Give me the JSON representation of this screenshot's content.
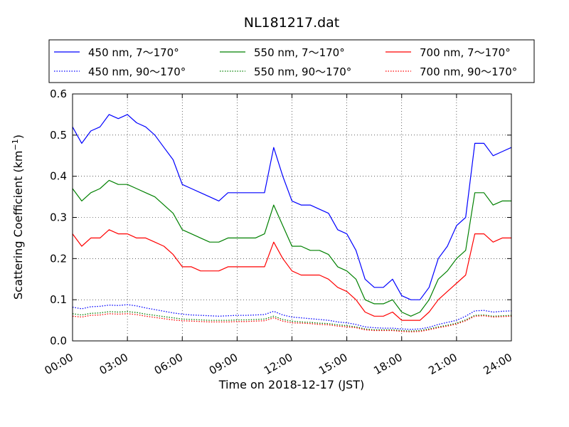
{
  "chart_data": {
    "type": "line",
    "title": "NL181217.dat",
    "xlabel": "Time on 2018-12-17 (JST)",
    "ylabel_main": "Scattering Coefficient (km",
    "ylabel_exp": "−1",
    "ylabel_close": ")",
    "xlim": [
      0,
      24
    ],
    "ylim": [
      0,
      0.6
    ],
    "x_tick_values": [
      0,
      3,
      6,
      9,
      12,
      15,
      18,
      21,
      24
    ],
    "x_tick_labels": [
      "00:00",
      "03:00",
      "06:00",
      "09:00",
      "12:00",
      "15:00",
      "18:00",
      "21:00",
      "24:00"
    ],
    "y_tick_values": [
      0,
      0.1,
      0.2,
      0.3,
      0.4,
      0.5,
      0.6
    ],
    "y_tick_labels": [
      "0.0",
      "0.1",
      "0.2",
      "0.3",
      "0.4",
      "0.5",
      "0.6"
    ],
    "grid": true,
    "legend_placement": "top",
    "x": [
      0,
      0.5,
      1,
      1.5,
      2,
      2.5,
      3,
      3.5,
      4,
      4.5,
      5,
      5.5,
      6,
      6.5,
      7,
      7.5,
      8,
      8.5,
      9,
      9.5,
      10,
      10.5,
      11,
      11.5,
      12,
      12.5,
      13,
      13.5,
      14,
      14.5,
      15,
      15.5,
      16,
      16.5,
      17,
      17.5,
      18,
      18.5,
      19,
      19.5,
      20,
      20.5,
      21,
      21.5,
      22,
      22.5,
      23,
      23.5,
      24
    ],
    "series": [
      {
        "name": "450 nm, 7～170°",
        "color": "#0000ff",
        "style": "solid",
        "values": [
          0.52,
          0.48,
          0.51,
          0.52,
          0.55,
          0.54,
          0.55,
          0.53,
          0.52,
          0.5,
          0.47,
          0.44,
          0.38,
          0.37,
          0.36,
          0.35,
          0.34,
          0.36,
          0.36,
          0.36,
          0.36,
          0.36,
          0.47,
          0.4,
          0.34,
          0.33,
          0.33,
          0.32,
          0.31,
          0.27,
          0.26,
          0.22,
          0.15,
          0.13,
          0.13,
          0.15,
          0.11,
          0.1,
          0.1,
          0.13,
          0.2,
          0.23,
          0.28,
          0.3,
          0.48,
          0.48,
          0.45,
          0.46,
          0.47
        ]
      },
      {
        "name": "450 nm, 90～170°",
        "color": "#0000ff",
        "style": "dotted",
        "values": [
          0.082,
          0.078,
          0.083,
          0.084,
          0.087,
          0.086,
          0.088,
          0.085,
          0.08,
          0.076,
          0.072,
          0.068,
          0.065,
          0.063,
          0.062,
          0.061,
          0.06,
          0.061,
          0.062,
          0.062,
          0.063,
          0.064,
          0.072,
          0.063,
          0.058,
          0.056,
          0.054,
          0.052,
          0.05,
          0.046,
          0.044,
          0.04,
          0.034,
          0.032,
          0.031,
          0.031,
          0.029,
          0.028,
          0.029,
          0.033,
          0.04,
          0.045,
          0.05,
          0.06,
          0.073,
          0.074,
          0.07,
          0.072,
          0.073
        ]
      },
      {
        "name": "550 nm, 7～170°",
        "color": "#008000",
        "style": "solid",
        "values": [
          0.37,
          0.34,
          0.36,
          0.37,
          0.39,
          0.38,
          0.38,
          0.37,
          0.36,
          0.35,
          0.33,
          0.31,
          0.27,
          0.26,
          0.25,
          0.24,
          0.24,
          0.25,
          0.25,
          0.25,
          0.25,
          0.26,
          0.33,
          0.28,
          0.23,
          0.23,
          0.22,
          0.22,
          0.21,
          0.18,
          0.17,
          0.15,
          0.1,
          0.09,
          0.09,
          0.1,
          0.07,
          0.06,
          0.07,
          0.1,
          0.15,
          0.17,
          0.2,
          0.22,
          0.36,
          0.36,
          0.33,
          0.34,
          0.34
        ]
      },
      {
        "name": "550 nm, 90～170°",
        "color": "#008000",
        "style": "dotted",
        "values": [
          0.066,
          0.063,
          0.067,
          0.068,
          0.071,
          0.07,
          0.071,
          0.069,
          0.065,
          0.062,
          0.059,
          0.056,
          0.053,
          0.052,
          0.051,
          0.05,
          0.05,
          0.05,
          0.051,
          0.051,
          0.052,
          0.053,
          0.06,
          0.052,
          0.048,
          0.046,
          0.045,
          0.043,
          0.042,
          0.039,
          0.037,
          0.034,
          0.029,
          0.027,
          0.027,
          0.027,
          0.025,
          0.024,
          0.025,
          0.029,
          0.034,
          0.038,
          0.043,
          0.051,
          0.062,
          0.063,
          0.06,
          0.061,
          0.062
        ]
      },
      {
        "name": "700 nm, 7～170°",
        "color": "#ff0000",
        "style": "solid",
        "values": [
          0.26,
          0.23,
          0.25,
          0.25,
          0.27,
          0.26,
          0.26,
          0.25,
          0.25,
          0.24,
          0.23,
          0.21,
          0.18,
          0.18,
          0.17,
          0.17,
          0.17,
          0.18,
          0.18,
          0.18,
          0.18,
          0.18,
          0.24,
          0.2,
          0.17,
          0.16,
          0.16,
          0.16,
          0.15,
          0.13,
          0.12,
          0.1,
          0.07,
          0.06,
          0.06,
          0.07,
          0.05,
          0.05,
          0.05,
          0.07,
          0.1,
          0.12,
          0.14,
          0.16,
          0.26,
          0.26,
          0.24,
          0.25,
          0.25
        ]
      },
      {
        "name": "700 nm, 90～170°",
        "color": "#ff0000",
        "style": "dotted",
        "values": [
          0.06,
          0.058,
          0.062,
          0.063,
          0.066,
          0.065,
          0.066,
          0.064,
          0.06,
          0.057,
          0.054,
          0.051,
          0.049,
          0.048,
          0.047,
          0.046,
          0.046,
          0.046,
          0.047,
          0.047,
          0.048,
          0.049,
          0.056,
          0.048,
          0.044,
          0.043,
          0.042,
          0.04,
          0.039,
          0.036,
          0.034,
          0.032,
          0.027,
          0.025,
          0.025,
          0.025,
          0.023,
          0.022,
          0.023,
          0.027,
          0.032,
          0.036,
          0.041,
          0.049,
          0.06,
          0.061,
          0.058,
          0.059,
          0.06
        ]
      }
    ]
  }
}
